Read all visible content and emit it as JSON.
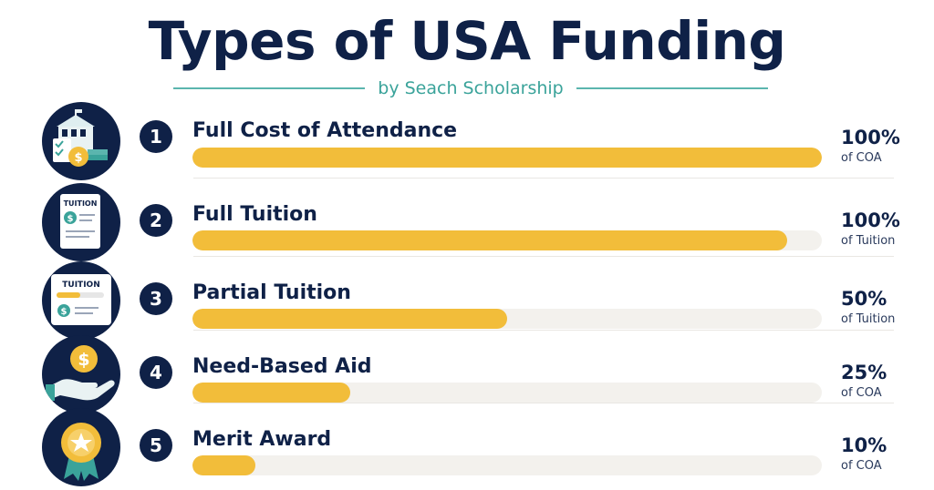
{
  "header": {
    "title": "Types of USA Funding",
    "subtitle": "by Seach Scholarship"
  },
  "colors": {
    "navy": "#0f2147",
    "gold": "#f2bd3a",
    "teal": "#3aa39a",
    "track": "#f3f1ed"
  },
  "chart_data": {
    "type": "bar",
    "orientation": "horizontal",
    "title": "Types of USA Funding",
    "subtitle": "by Seach Scholarship",
    "xlim": [
      0,
      100
    ],
    "categories": [
      "Full Cost of Attendance",
      "Full Tuition",
      "Partial Tuition",
      "Need-Based Aid",
      "Merit Award"
    ],
    "values": [
      100,
      100,
      50,
      25,
      10
    ],
    "items": [
      {
        "number": "1",
        "label": "Full Cost of Attendance",
        "value": 100,
        "value_label": "100%",
        "unit_label": "of COA",
        "icon": "campus-money-icon"
      },
      {
        "number": "2",
        "label": "Full Tuition",
        "value": 100,
        "value_label": "100%",
        "unit_label": "of Tuition",
        "icon": "tuition-document-icon"
      },
      {
        "number": "3",
        "label": "Partial Tuition",
        "value": 50,
        "value_label": "50%",
        "unit_label": "of Tuition",
        "icon": "tuition-card-icon"
      },
      {
        "number": "4",
        "label": "Need-Based Aid",
        "value": 25,
        "value_label": "25%",
        "unit_label": "of COA",
        "icon": "hand-coin-icon"
      },
      {
        "number": "5",
        "label": "Merit Award",
        "value": 10,
        "value_label": "10%",
        "unit_label": "of COA",
        "icon": "award-medal-icon"
      }
    ]
  }
}
